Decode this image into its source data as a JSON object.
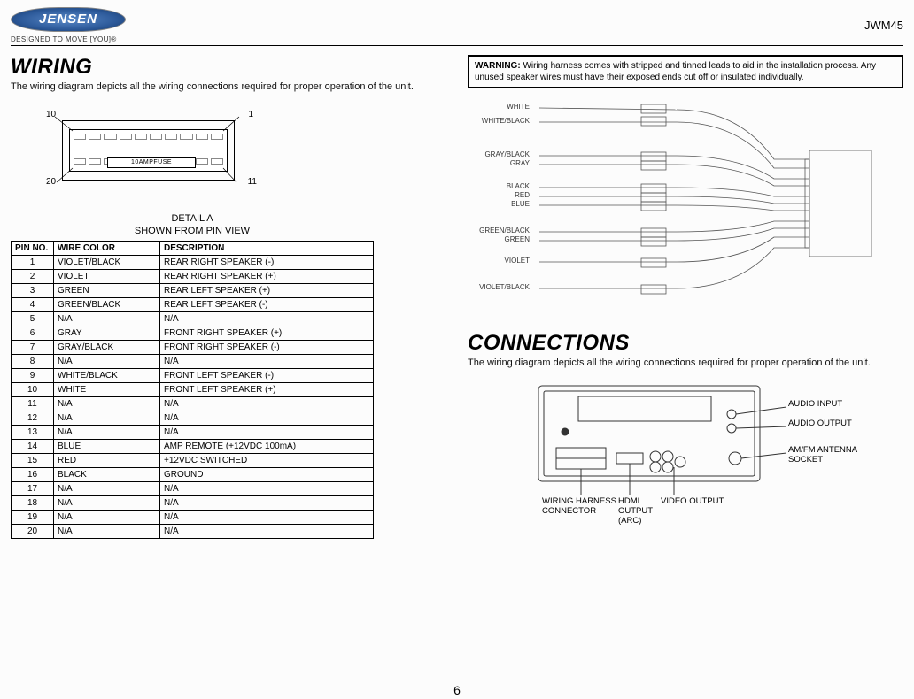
{
  "header": {
    "brand": "JENSEN",
    "tagline": "DESIGNED TO MOVE [YOU]®",
    "model": "JWM45"
  },
  "left": {
    "title": "WIRING",
    "desc": "The wiring diagram depicts all the wiring connections required for proper operation of the unit.",
    "connector": {
      "top_left": "10",
      "top_right": "1",
      "bot_left": "20",
      "bot_right": "11",
      "fuse": "10AMPFUSE"
    },
    "detail_line1": "DETAIL A",
    "detail_line2": "SHOWN FROM PIN VIEW",
    "table": {
      "headers": [
        "PIN NO.",
        "WIRE COLOR",
        "DESCRIPTION"
      ],
      "rows": [
        [
          "1",
          "VIOLET/BLACK",
          "REAR RIGHT SPEAKER (-)"
        ],
        [
          "2",
          "VIOLET",
          "REAR RIGHT SPEAKER (+)"
        ],
        [
          "3",
          "GREEN",
          "REAR LEFT SPEAKER (+)"
        ],
        [
          "4",
          "GREEN/BLACK",
          "REAR LEFT SPEAKER (-)"
        ],
        [
          "5",
          "N/A",
          "N/A"
        ],
        [
          "6",
          "GRAY",
          "FRONT RIGHT SPEAKER (+)"
        ],
        [
          "7",
          "GRAY/BLACK",
          "FRONT RIGHT SPEAKER (-)"
        ],
        [
          "8",
          "N/A",
          "N/A"
        ],
        [
          "9",
          "WHITE/BLACK",
          "FRONT LEFT SPEAKER (-)"
        ],
        [
          "10",
          "WHITE",
          "FRONT LEFT SPEAKER (+)"
        ],
        [
          "11",
          "N/A",
          "N/A"
        ],
        [
          "12",
          "N/A",
          "N/A"
        ],
        [
          "13",
          "N/A",
          "N/A"
        ],
        [
          "14",
          "BLUE",
          "AMP REMOTE (+12VDC 100mA)"
        ],
        [
          "15",
          "RED",
          "+12VDC SWITCHED"
        ],
        [
          "16",
          "BLACK",
          "GROUND"
        ],
        [
          "17",
          "N/A",
          "N/A"
        ],
        [
          "18",
          "N/A",
          "N/A"
        ],
        [
          "19",
          "N/A",
          "N/A"
        ],
        [
          "20",
          "N/A",
          "N/A"
        ]
      ]
    }
  },
  "right": {
    "warning_label": "WARNING:",
    "warning_text": "Wiring harness comes with stripped and tinned leads to aid in the installation process. Any unused speaker wires must have their exposed ends cut off or insulated individually.",
    "wire_labels": [
      "WHITE",
      "WHITE/BLACK",
      "GRAY/BLACK",
      "GRAY",
      "BLACK",
      "RED",
      "BLUE",
      "GREEN/BLACK",
      "GREEN",
      "VIOLET",
      "VIOLET/BLACK"
    ],
    "conn_title": "CONNECTIONS",
    "conn_desc": "The wiring diagram depicts all the wiring connections required for proper operation of the unit.",
    "panel_labels": {
      "audio_in": "AUDIO INPUT",
      "audio_out": "AUDIO OUTPUT",
      "antenna1": "AM/FM ANTENNA",
      "antenna2": "SOCKET",
      "harness1": "WIRING HARNESS",
      "harness2": "CONNECTOR",
      "hdmi1": "HDMI",
      "hdmi2": "OUTPUT",
      "hdmi3": "(ARC)",
      "video": "VIDEO OUTPUT"
    }
  },
  "page_number": "6"
}
